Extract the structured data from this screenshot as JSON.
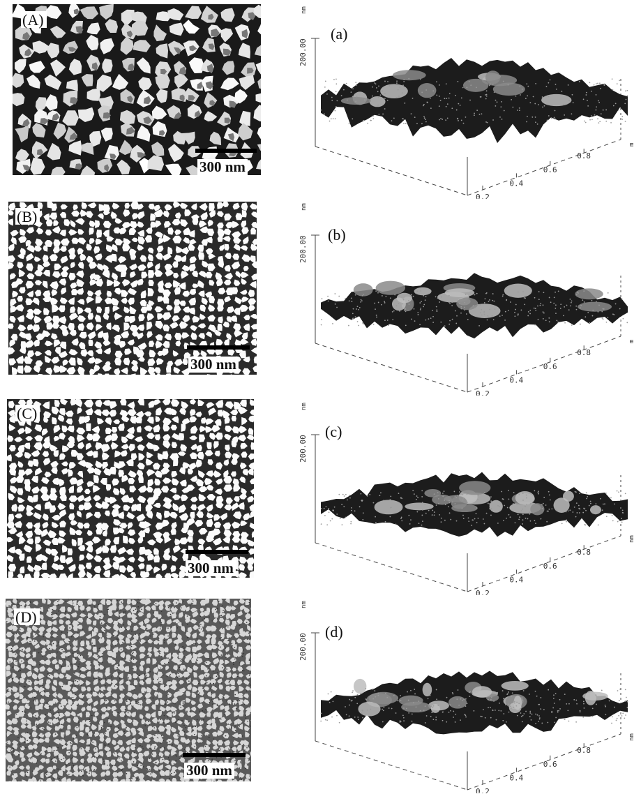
{
  "figure": {
    "sem_panels": [
      {
        "label": "(A)",
        "scale": "300 nm",
        "style": "coarse"
      },
      {
        "label": "(B)",
        "scale": "300 nm",
        "style": "network"
      },
      {
        "label": "(C)",
        "scale": "300 nm",
        "style": "network"
      },
      {
        "label": "(D)",
        "scale": "300 nm",
        "style": "fine"
      }
    ],
    "afm_panels": [
      {
        "label": "(a)",
        "z_label": "200.00",
        "z_unit": "nm",
        "unit": "m",
        "ticks": [
          "0.2",
          "0.4",
          "0.6",
          "0.8"
        ]
      },
      {
        "label": "(b)",
        "z_label": "200.00",
        "z_unit": "nm",
        "unit": "m",
        "ticks": [
          "0.2",
          "0.4",
          "0.6",
          "0.8"
        ]
      },
      {
        "label": "(c)",
        "z_label": "200.00",
        "z_unit": "nm",
        "unit": "nm",
        "ticks": [
          "0.2",
          "0.4",
          "0.6",
          "0.8"
        ]
      },
      {
        "label": "(d)",
        "z_label": "200.00",
        "z_unit": "nm",
        "unit": "nm",
        "ticks": [
          "0.2",
          "0.4",
          "0.6",
          "0.8"
        ]
      }
    ]
  }
}
